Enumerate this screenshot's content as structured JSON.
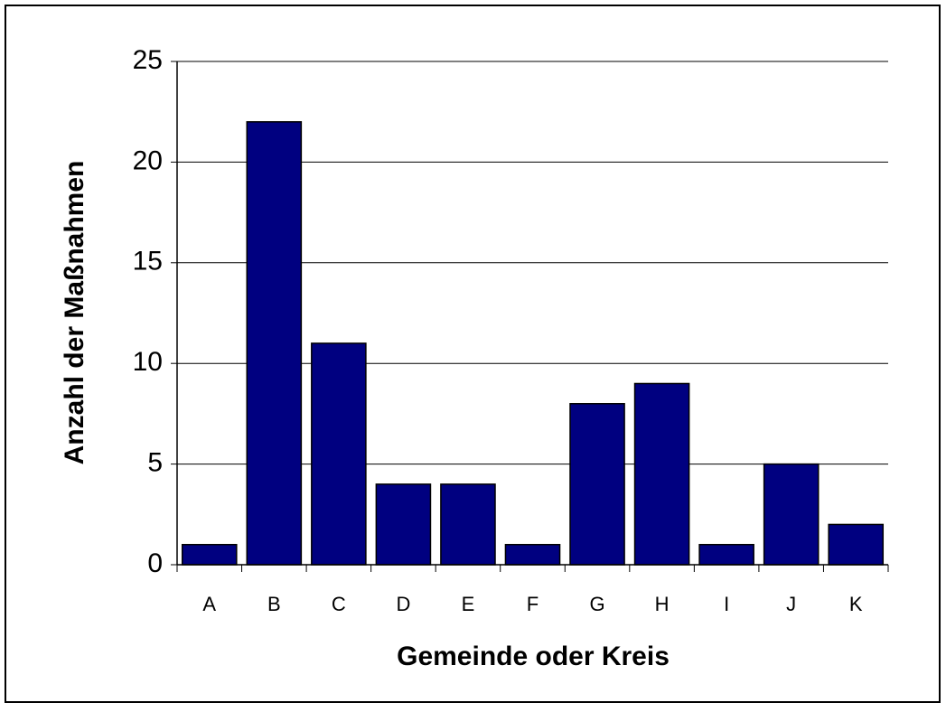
{
  "chart_data": {
    "type": "bar",
    "xlabel": "Gemeinde oder Kreis",
    "ylabel": "Anzahl der Maßnahmen",
    "categories": [
      "A",
      "B",
      "C",
      "D",
      "E",
      "F",
      "G",
      "H",
      "I",
      "J",
      "K"
    ],
    "values": [
      1,
      22,
      11,
      4,
      4,
      1,
      8,
      9,
      1,
      5,
      2
    ],
    "color": "#000080",
    "ylim": [
      0,
      25
    ],
    "yticks": [
      0,
      5,
      10,
      15,
      20,
      25
    ],
    "grid": true
  }
}
